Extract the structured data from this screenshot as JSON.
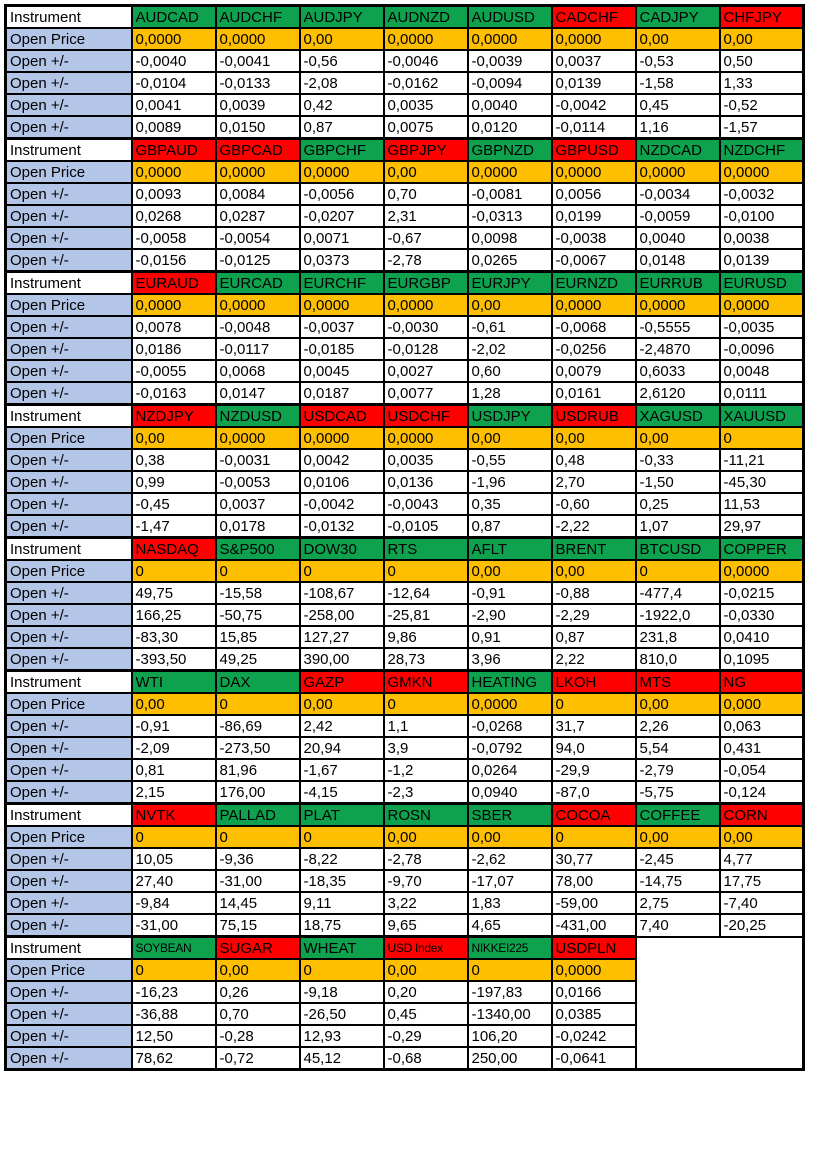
{
  "labels": {
    "instrument": "Instrument",
    "open_price": "Open Price",
    "open_change": "Open +/-"
  },
  "colors": {
    "header_green": "#0ea24e",
    "header_red": "#ff0000",
    "open_price_orange": "#febf00",
    "label_blue": "#b4c6e7",
    "grid_border": "#000000"
  },
  "blocks": [
    {
      "instruments": [
        {
          "name": "AUDCAD",
          "color": "green"
        },
        {
          "name": "AUDCHF",
          "color": "green"
        },
        {
          "name": "AUDJPY",
          "color": "green"
        },
        {
          "name": "AUDNZD",
          "color": "green"
        },
        {
          "name": "AUDUSD",
          "color": "green"
        },
        {
          "name": "CADCHF",
          "color": "red"
        },
        {
          "name": "CADJPY",
          "color": "green"
        },
        {
          "name": "CHFJPY",
          "color": "red"
        }
      ],
      "open_price": [
        "0,0000",
        "0,0000",
        "0,00",
        "0,0000",
        "0,0000",
        "0,0000",
        "0,00",
        "0,00"
      ],
      "changes": [
        [
          "-0,0040",
          "-0,0041",
          "-0,56",
          "-0,0046",
          "-0,0039",
          "0,0037",
          "-0,53",
          "0,50"
        ],
        [
          "-0,0104",
          "-0,0133",
          "-2,08",
          "-0,0162",
          "-0,0094",
          "0,0139",
          "-1,58",
          "1,33"
        ],
        [
          "0,0041",
          "0,0039",
          "0,42",
          "0,0035",
          "0,0040",
          "-0,0042",
          "0,45",
          "-0,52"
        ],
        [
          "0,0089",
          "0,0150",
          "0,87",
          "0,0075",
          "0,0120",
          "-0,0114",
          "1,16",
          "-1,57"
        ]
      ]
    },
    {
      "instruments": [
        {
          "name": "GBPAUD",
          "color": "red"
        },
        {
          "name": "GBPCAD",
          "color": "red"
        },
        {
          "name": "GBPCHF",
          "color": "green"
        },
        {
          "name": "GBPJPY",
          "color": "red"
        },
        {
          "name": "GBPNZD",
          "color": "green"
        },
        {
          "name": "GBPUSD",
          "color": "red"
        },
        {
          "name": "NZDCAD",
          "color": "green"
        },
        {
          "name": "NZDCHF",
          "color": "green"
        }
      ],
      "open_price": [
        "0,0000",
        "0,0000",
        "0,0000",
        "0,00",
        "0,0000",
        "0,0000",
        "0,0000",
        "0,0000"
      ],
      "changes": [
        [
          "0,0093",
          "0,0084",
          "-0,0056",
          "0,70",
          "-0,0081",
          "0,0056",
          "-0,0034",
          "-0,0032"
        ],
        [
          "0,0268",
          "0,0287",
          "-0,0207",
          "2,31",
          "-0,0313",
          "0,0199",
          "-0,0059",
          "-0,0100"
        ],
        [
          "-0,0058",
          "-0,0054",
          "0,0071",
          "-0,67",
          "0,0098",
          "-0,0038",
          "0,0040",
          "0,0038"
        ],
        [
          "-0,0156",
          "-0,0125",
          "0,0373",
          "-2,78",
          "0,0265",
          "-0,0067",
          "0,0148",
          "0,0139"
        ]
      ]
    },
    {
      "instruments": [
        {
          "name": "EURAUD",
          "color": "red"
        },
        {
          "name": "EURCAD",
          "color": "green"
        },
        {
          "name": "EURCHF",
          "color": "green"
        },
        {
          "name": "EURGBP",
          "color": "green"
        },
        {
          "name": "EURJPY",
          "color": "green"
        },
        {
          "name": "EURNZD",
          "color": "green"
        },
        {
          "name": "EURRUB",
          "color": "green"
        },
        {
          "name": "EURUSD",
          "color": "green"
        }
      ],
      "open_price": [
        "0,0000",
        "0,0000",
        "0,0000",
        "0,0000",
        "0,00",
        "0,0000",
        "0,0000",
        "0,0000"
      ],
      "changes": [
        [
          "0,0078",
          "-0,0048",
          "-0,0037",
          "-0,0030",
          "-0,61",
          "-0,0068",
          "-0,5555",
          "-0,0035"
        ],
        [
          "0,0186",
          "-0,0117",
          "-0,0185",
          "-0,0128",
          "-2,02",
          "-0,0256",
          "-2,4870",
          "-0,0096"
        ],
        [
          "-0,0055",
          "0,0068",
          "0,0045",
          "0,0027",
          "0,60",
          "0,0079",
          "0,6033",
          "0,0048"
        ],
        [
          "-0,0163",
          "0,0147",
          "0,0187",
          "0,0077",
          "1,28",
          "0,0161",
          "2,6120",
          "0,0111"
        ]
      ]
    },
    {
      "instruments": [
        {
          "name": "NZDJPY",
          "color": "red"
        },
        {
          "name": "NZDUSD",
          "color": "green"
        },
        {
          "name": "USDCAD",
          "color": "red"
        },
        {
          "name": "USDCHF",
          "color": "red"
        },
        {
          "name": "USDJPY",
          "color": "green"
        },
        {
          "name": "USDRUB",
          "color": "red"
        },
        {
          "name": "XAGUSD",
          "color": "green"
        },
        {
          "name": "XAUUSD",
          "color": "green"
        }
      ],
      "open_price": [
        "0,00",
        "0,0000",
        "0,0000",
        "0,0000",
        "0,00",
        "0,00",
        "0,00",
        "0"
      ],
      "changes": [
        [
          "0,38",
          "-0,0031",
          "0,0042",
          "0,0035",
          "-0,55",
          "0,48",
          "-0,33",
          "-11,21"
        ],
        [
          "0,99",
          "-0,0053",
          "0,0106",
          "0,0136",
          "-1,96",
          "2,70",
          "-1,50",
          "-45,30"
        ],
        [
          "-0,45",
          "0,0037",
          "-0,0042",
          "-0,0043",
          "0,35",
          "-0,60",
          "0,25",
          "11,53"
        ],
        [
          "-1,47",
          "0,0178",
          "-0,0132",
          "-0,0105",
          "0,87",
          "-2,22",
          "1,07",
          "29,97"
        ]
      ]
    },
    {
      "instruments": [
        {
          "name": "NASDAQ",
          "color": "red"
        },
        {
          "name": "S&P500",
          "color": "green"
        },
        {
          "name": "DOW30",
          "color": "green"
        },
        {
          "name": "RTS",
          "color": "green"
        },
        {
          "name": "AFLT",
          "color": "green"
        },
        {
          "name": "BRENT",
          "color": "green"
        },
        {
          "name": "BTCUSD",
          "color": "green"
        },
        {
          "name": "COPPER",
          "color": "green"
        }
      ],
      "open_price": [
        "0",
        "0",
        "0",
        "0",
        "0,00",
        "0,00",
        "0",
        "0,0000"
      ],
      "changes": [
        [
          "49,75",
          "-15,58",
          "-108,67",
          "-12,64",
          "-0,91",
          "-0,88",
          "-477,4",
          "-0,0215"
        ],
        [
          "166,25",
          "-50,75",
          "-258,00",
          "-25,81",
          "-2,90",
          "-2,29",
          "-1922,0",
          "-0,0330"
        ],
        [
          "-83,30",
          "15,85",
          "127,27",
          "9,86",
          "0,91",
          "0,87",
          "231,8",
          "0,0410"
        ],
        [
          "-393,50",
          "49,25",
          "390,00",
          "28,73",
          "3,96",
          "2,22",
          "810,0",
          "0,1095"
        ]
      ]
    },
    {
      "instruments": [
        {
          "name": "WTI",
          "color": "green"
        },
        {
          "name": "DAX",
          "color": "green"
        },
        {
          "name": "GAZP",
          "color": "red"
        },
        {
          "name": "GMKN",
          "color": "red"
        },
        {
          "name": "HEATING",
          "color": "green"
        },
        {
          "name": "LKOH",
          "color": "red"
        },
        {
          "name": "MTS",
          "color": "red"
        },
        {
          "name": "NG",
          "color": "red"
        }
      ],
      "open_price": [
        "0,00",
        "0",
        "0,00",
        "0",
        "0,0000",
        "0",
        "0,00",
        "0,000"
      ],
      "changes": [
        [
          "-0,91",
          "-86,69",
          "2,42",
          "1,1",
          "-0,0268",
          "31,7",
          "2,26",
          "0,063"
        ],
        [
          "-2,09",
          "-273,50",
          "20,94",
          "3,9",
          "-0,0792",
          "94,0",
          "5,54",
          "0,431"
        ],
        [
          "0,81",
          "81,96",
          "-1,67",
          "-1,2",
          "0,0264",
          "-29,9",
          "-2,79",
          "-0,054"
        ],
        [
          "2,15",
          "176,00",
          "-4,15",
          "-2,3",
          "0,0940",
          "-87,0",
          "-5,75",
          "-0,124"
        ]
      ]
    },
    {
      "instruments": [
        {
          "name": "NVTK",
          "color": "red"
        },
        {
          "name": "PALLAD",
          "color": "green"
        },
        {
          "name": "PLAT",
          "color": "green"
        },
        {
          "name": "ROSN",
          "color": "green"
        },
        {
          "name": "SBER",
          "color": "green"
        },
        {
          "name": "COCOA",
          "color": "red"
        },
        {
          "name": "COFFEE",
          "color": "green"
        },
        {
          "name": "CORN",
          "color": "red"
        }
      ],
      "open_price": [
        "0",
        "0",
        "0",
        "0,00",
        "0,00",
        "0",
        "0,00",
        "0,00"
      ],
      "changes": [
        [
          "10,05",
          "-9,36",
          "-8,22",
          "-2,78",
          "-2,62",
          "30,77",
          "-2,45",
          "4,77"
        ],
        [
          "27,40",
          "-31,00",
          "-18,35",
          "-9,70",
          "-17,07",
          "78,00",
          "-14,75",
          "17,75"
        ],
        [
          "-9,84",
          "14,45",
          "9,11",
          "3,22",
          "1,83",
          "-59,00",
          "2,75",
          "-7,40"
        ],
        [
          "-31,00",
          "75,15",
          "18,75",
          "9,65",
          "4,65",
          "-431,00",
          "7,40",
          "-20,25"
        ]
      ]
    },
    {
      "instruments": [
        {
          "name": "SOYBEAN",
          "color": "green",
          "small": true
        },
        {
          "name": "SUGAR",
          "color": "red"
        },
        {
          "name": "WHEAT",
          "color": "green"
        },
        {
          "name": "USD Index",
          "color": "red",
          "small": true
        },
        {
          "name": "NIKKEI225",
          "color": "green",
          "small": true
        },
        {
          "name": "USDPLN",
          "color": "red"
        }
      ],
      "open_price": [
        "0",
        "0,00",
        "0",
        "0,00",
        "0",
        "0,0000"
      ],
      "changes": [
        [
          "-16,23",
          "0,26",
          "-9,18",
          "0,20",
          "-197,83",
          "0,0166"
        ],
        [
          "-36,88",
          "0,70",
          "-26,50",
          "0,45",
          "-1340,00",
          "0,0385"
        ],
        [
          "12,50",
          "-0,28",
          "12,93",
          "-0,29",
          "106,20",
          "-0,0242"
        ],
        [
          "78,62",
          "-0,72",
          "45,12",
          "-0,68",
          "250,00",
          "-0,0641"
        ]
      ]
    }
  ]
}
